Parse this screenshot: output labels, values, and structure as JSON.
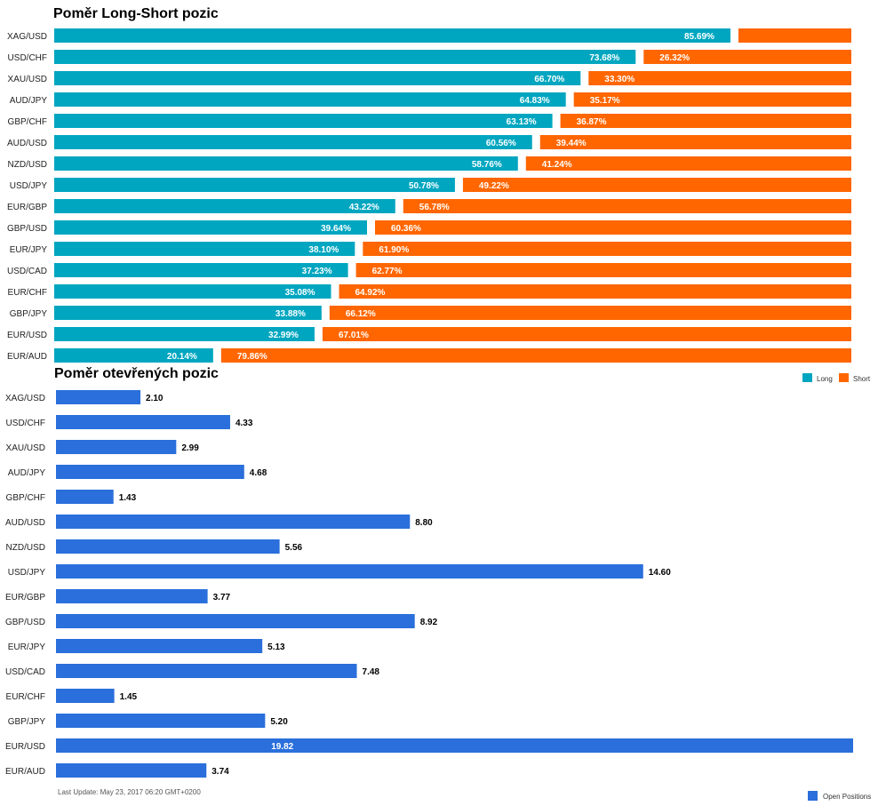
{
  "chart_data": [
    {
      "type": "bar",
      "stacked": true,
      "orientation": "horizontal",
      "title": "Poměr Long-Short pozic",
      "categories": [
        "XAG/USD",
        "USD/CHF",
        "XAU/USD",
        "AUD/JPY",
        "GBP/CHF",
        "AUD/USD",
        "NZD/USD",
        "USD/JPY",
        "EUR/GBP",
        "GBP/USD",
        "EUR/JPY",
        "USD/CAD",
        "EUR/CHF",
        "GBP/JPY",
        "EUR/USD",
        "EUR/AUD"
      ],
      "series": [
        {
          "name": "Long",
          "color": "#00a6c0",
          "values": [
            85.69,
            73.68,
            66.7,
            64.83,
            63.13,
            60.56,
            58.76,
            50.78,
            43.22,
            39.64,
            38.1,
            37.23,
            35.08,
            33.88,
            32.99,
            20.14
          ],
          "labels": [
            "85.69%",
            "73.68%",
            "66.70%",
            "64.83%",
            "63.13%",
            "60.56%",
            "58.76%",
            "50.78%",
            "43.22%",
            "39.64%",
            "38.10%",
            "37.23%",
            "35.08%",
            "33.88%",
            "32.99%",
            "20.14%"
          ]
        },
        {
          "name": "Short",
          "color": "#ff6600",
          "values": [
            14.31,
            26.32,
            33.3,
            35.17,
            36.87,
            39.44,
            41.24,
            49.22,
            56.78,
            60.36,
            61.9,
            62.77,
            64.92,
            66.12,
            67.01,
            79.86
          ],
          "labels": [
            "",
            "26.32%",
            "33.30%",
            "35.17%",
            "36.87%",
            "39.44%",
            "41.24%",
            "49.22%",
            "56.78%",
            "60.36%",
            "61.90%",
            "62.77%",
            "64.92%",
            "66.12%",
            "67.01%",
            "79.86%"
          ]
        }
      ],
      "xlim": [
        0,
        100
      ],
      "legend_position": "bottom-right"
    },
    {
      "type": "bar",
      "orientation": "horizontal",
      "title": "Poměr otevřených pozic",
      "categories": [
        "XAG/USD",
        "USD/CHF",
        "XAU/USD",
        "AUD/JPY",
        "GBP/CHF",
        "AUD/USD",
        "NZD/USD",
        "USD/JPY",
        "EUR/GBP",
        "GBP/USD",
        "EUR/JPY",
        "USD/CAD",
        "EUR/CHF",
        "GBP/JPY",
        "EUR/USD",
        "EUR/AUD"
      ],
      "series": [
        {
          "name": "Open Positions",
          "color": "#2a6fdb",
          "values": [
            2.1,
            4.33,
            2.99,
            4.68,
            1.43,
            8.8,
            5.56,
            14.6,
            3.77,
            8.92,
            5.13,
            7.48,
            1.45,
            5.2,
            19.82,
            3.74
          ],
          "labels": [
            "2.10",
            "4.33",
            "2.99",
            "4.68",
            "1.43",
            "8.80",
            "5.56",
            "14.60",
            "3.77",
            "8.92",
            "5.13",
            "7.48",
            "1.45",
            "5.20",
            "19.82",
            "3.74"
          ]
        }
      ],
      "xlim": [
        0,
        19.82
      ],
      "legend_position": "bottom-right"
    }
  ],
  "footer": {
    "last_update": "Last Update: May 23, 2017 06:20 GMT+0200"
  }
}
